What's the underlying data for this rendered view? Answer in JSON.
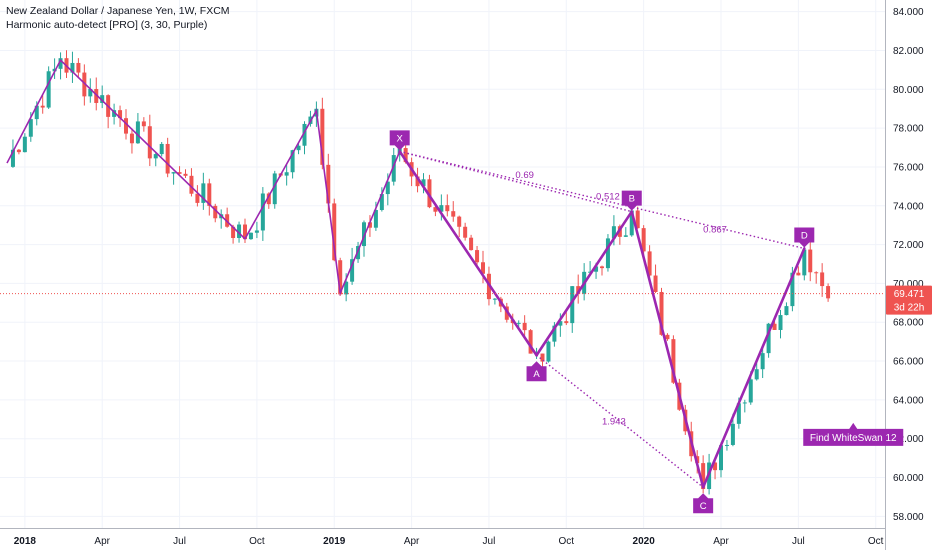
{
  "header": {
    "symbol_title": "New Zealand Dollar / Japanese Yen, 1W, FXCM",
    "indicator_title": "Harmonic auto-detect [PRO] (3, 30, Purple)"
  },
  "colors": {
    "up": "#26a69a",
    "down": "#ef5350",
    "pattern": "#9c27b0",
    "grid": "#f0f3fa",
    "axis_text": "#131722",
    "price_line": "#ef5350"
  },
  "chart_data": {
    "type": "candlestick",
    "y_axis": {
      "min": 57.4,
      "max": 84.6,
      "ticks": [
        "84.000",
        "82.000",
        "80.000",
        "78.000",
        "76.000",
        "74.000",
        "72.000",
        "70.000",
        "68.000",
        "66.000",
        "64.000",
        "62.000",
        "60.000",
        "58.000"
      ]
    },
    "x_axis": {
      "ticks": [
        {
          "label": "2018",
          "bar": 3,
          "bold": true
        },
        {
          "label": "Apr",
          "bar": 16,
          "bold": false
        },
        {
          "label": "Jul",
          "bar": 29,
          "bold": false
        },
        {
          "label": "Oct",
          "bar": 42,
          "bold": false
        },
        {
          "label": "2019",
          "bar": 55,
          "bold": true
        },
        {
          "label": "Apr",
          "bar": 68,
          "bold": false
        },
        {
          "label": "Jul",
          "bar": 81,
          "bold": false
        },
        {
          "label": "Oct",
          "bar": 94,
          "bold": false
        },
        {
          "label": "2020",
          "bar": 107,
          "bold": true
        },
        {
          "label": "Apr",
          "bar": 120,
          "bold": false
        },
        {
          "label": "Jul",
          "bar": 133,
          "bold": false
        },
        {
          "label": "Oct",
          "bar": 146,
          "bold": false
        }
      ]
    },
    "pivots": [
      {
        "bar": 0,
        "price": 76.2
      },
      {
        "bar": 9,
        "price": 81.5
      },
      {
        "bar": 40,
        "price": 72.3
      },
      {
        "bar": 52,
        "price": 78.9
      },
      {
        "bar": 56,
        "price": 69.5
      },
      {
        "bar": 66,
        "price": 76.8
      },
      {
        "bar": 89,
        "price": 66.3
      },
      {
        "bar": 105,
        "price": 73.7
      },
      {
        "bar": 117,
        "price": 59.5
      },
      {
        "bar": 134,
        "price": 71.8
      },
      {
        "bar": 138,
        "price": 69.4
      }
    ],
    "zigzag": [
      {
        "bar": 0,
        "price": 76.2
      },
      {
        "bar": 9,
        "price": 81.5
      },
      {
        "bar": 40,
        "price": 72.3
      },
      {
        "bar": 52,
        "price": 78.9
      },
      {
        "bar": 56,
        "price": 69.5
      },
      {
        "bar": 66,
        "price": 76.8
      }
    ],
    "pattern_points": [
      {
        "label": "X",
        "bar": 66,
        "price": 76.8,
        "marker": "above"
      },
      {
        "label": "A",
        "bar": 89,
        "price": 66.3,
        "marker": "below"
      },
      {
        "label": "B",
        "bar": 105,
        "price": 73.7,
        "marker": "above"
      },
      {
        "label": "C",
        "bar": 117,
        "price": 59.5,
        "marker": "below"
      },
      {
        "label": "D",
        "bar": 134,
        "price": 71.8,
        "marker": "above"
      }
    ],
    "ratios": [
      {
        "label": "0.69",
        "from": "X",
        "to": "B",
        "at_bar": 87,
        "at_price": 75.6
      },
      {
        "label": "0.512",
        "from": "A",
        "to": "C",
        "at_bar": 101,
        "at_price": 74.5
      },
      {
        "label": "0.867",
        "from": "X",
        "to": "D",
        "at_bar": 119,
        "at_price": 72.8
      },
      {
        "label": "1.943",
        "from": "A",
        "to": "C",
        "at_bar": 102,
        "at_price": 62.9
      }
    ],
    "last_price": {
      "value": "69.471",
      "countdown": "3d 22h"
    },
    "annotation": {
      "text": "Find WhiteSwan 12",
      "bar": 135,
      "price": 62.2
    }
  }
}
